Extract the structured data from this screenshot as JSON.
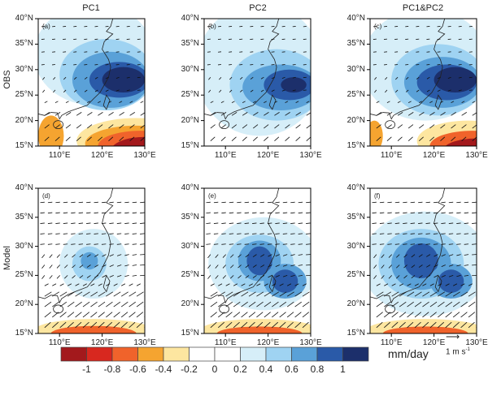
{
  "columns": [
    "PC1",
    "PC2",
    "PC1&PC2"
  ],
  "rows": [
    "OBS",
    "Model"
  ],
  "panels": [
    "(a)",
    "(b)",
    "(c)",
    "(d)",
    "(e)",
    "(f)"
  ],
  "lat_ticks": [
    "40°N",
    "35°N",
    "30°N",
    "25°N",
    "20°N",
    "15°N"
  ],
  "lon_ticks": [
    "110°E",
    "120°E",
    "130°E"
  ],
  "reference_vector": {
    "label": "1 m s",
    "exponent": "-1"
  },
  "colorbar": {
    "labels": [
      "-1",
      "-0.8",
      "-0.6",
      "-0.4",
      "-0.2",
      "0",
      "0.2",
      "0.4",
      "0.6",
      "0.8",
      "1"
    ],
    "colors": [
      "#a3191c",
      "#d8281f",
      "#f0632b",
      "#f5a430",
      "#fde6a0",
      "#ffffff",
      "#ffffff",
      "#d6eef8",
      "#9fd3f2",
      "#5aa1d8",
      "#2a5aa8",
      "#1c2f6b"
    ],
    "unit": "mm/day"
  }
}
